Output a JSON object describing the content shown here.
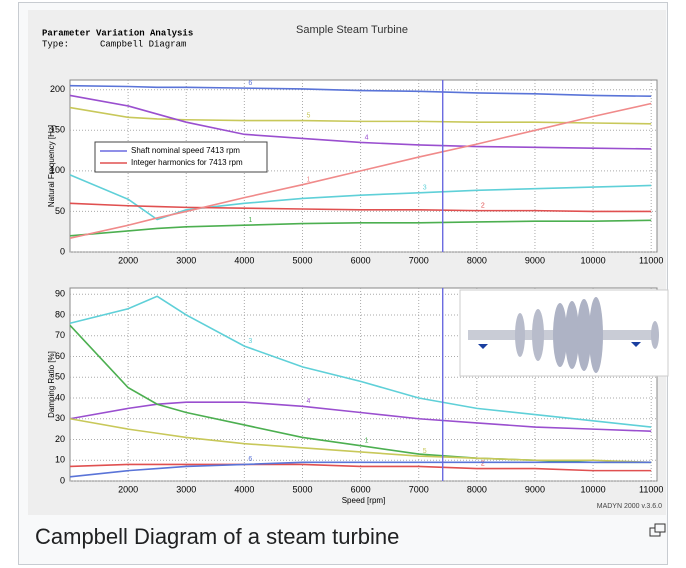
{
  "header": {
    "analysis": "Parameter Variation Analysis",
    "type_label": "Type:",
    "type_value": "Campbell Diagram",
    "title": "Sample Steam Turbine"
  },
  "watermark": "MADYN 2000 v.3.6.0",
  "caption": "Campbell Diagram of a steam turbine",
  "chart_data": [
    {
      "type": "line",
      "ylabel": "Natural Frequency [Hz]",
      "x": [
        1000,
        2000,
        2500,
        3000,
        4000,
        5000,
        6000,
        7000,
        8000,
        9000,
        10000,
        11000
      ],
      "xlim": [
        1000,
        11100
      ],
      "xticks": [
        2000,
        3000,
        4000,
        5000,
        6000,
        7000,
        8000,
        9000,
        10000,
        11000
      ],
      "ylim": [
        0,
        212
      ],
      "yticks": [
        0,
        50,
        100,
        150,
        200
      ],
      "grid": true,
      "shaft_speed": 7413,
      "legend": [
        {
          "name": "Shaft nominal speed 7413 rpm",
          "color": "#6a6ae0"
        },
        {
          "name": "Integer harmonics for 7413 rpm",
          "color": "#e05050"
        }
      ],
      "series": [
        {
          "name": "6",
          "color": "#5a74d8",
          "values": [
            205,
            204,
            203,
            203,
            202,
            201,
            199,
            198,
            196,
            195,
            193,
            192
          ]
        },
        {
          "name": "5",
          "color": "#c8c85a",
          "values": [
            178,
            166,
            164,
            163,
            162,
            162,
            161,
            161,
            160,
            160,
            159,
            158
          ]
        },
        {
          "name": "4",
          "color": "#9a4fcf",
          "values": [
            193,
            180,
            170,
            160,
            145,
            140,
            135,
            132,
            130,
            129,
            128,
            127
          ]
        },
        {
          "name": "3",
          "color": "#5fd0d8",
          "values": [
            95,
            65,
            40,
            52,
            60,
            66,
            70,
            73,
            76,
            78,
            80,
            82
          ]
        },
        {
          "name": "2",
          "color": "#e05050",
          "values": [
            60,
            57,
            56,
            55,
            54,
            53,
            52,
            52,
            51,
            51,
            50,
            50
          ]
        },
        {
          "name": "1",
          "color": "#4caf50",
          "values": [
            20,
            26,
            29,
            31,
            33,
            35,
            36,
            36,
            37,
            38,
            38,
            39
          ]
        },
        {
          "name": "1",
          "color": "#f08a8a",
          "values": [
            17,
            33,
            42,
            50,
            67,
            83,
            100,
            117,
            133,
            150,
            167,
            183
          ]
        }
      ]
    },
    {
      "type": "line",
      "ylabel": "Damping Ratio [%]",
      "xlabel": "Speed [rpm]",
      "x": [
        1000,
        2000,
        2500,
        3000,
        4000,
        5000,
        6000,
        7000,
        8000,
        9000,
        10000,
        11000
      ],
      "xlim": [
        1000,
        11100
      ],
      "xticks": [
        2000,
        3000,
        4000,
        5000,
        6000,
        7000,
        8000,
        9000,
        10000,
        11000
      ],
      "ylim": [
        0,
        93
      ],
      "yticks": [
        0,
        10,
        20,
        30,
        40,
        50,
        60,
        70,
        80,
        90
      ],
      "grid": true,
      "shaft_speed": 7413,
      "shaft_color": "#6a6ae0",
      "series": [
        {
          "name": "3",
          "color": "#5fd0d8",
          "values": [
            76,
            83,
            89,
            80,
            65,
            55,
            48,
            40,
            35,
            32,
            29,
            26
          ]
        },
        {
          "name": "4",
          "color": "#9a4fcf",
          "values": [
            30,
            35,
            37,
            38,
            38,
            36,
            33,
            30,
            28,
            26,
            25,
            24
          ]
        },
        {
          "name": "1",
          "color": "#4caf50",
          "values": [
            75,
            45,
            37,
            33,
            27,
            21,
            17,
            13,
            11,
            10,
            9,
            9
          ]
        },
        {
          "name": "5",
          "color": "#c8c85a",
          "values": [
            30,
            25,
            23,
            21,
            18,
            16,
            14,
            12,
            11,
            10,
            10,
            9
          ]
        },
        {
          "name": "2",
          "color": "#e05050",
          "values": [
            7,
            8,
            8,
            8,
            8,
            8,
            7,
            7,
            6,
            6,
            5,
            5
          ]
        },
        {
          "name": "6",
          "color": "#5a74d8",
          "values": [
            2,
            5,
            6,
            7,
            8,
            9,
            9,
            9,
            9,
            9,
            9,
            9
          ]
        }
      ]
    }
  ]
}
